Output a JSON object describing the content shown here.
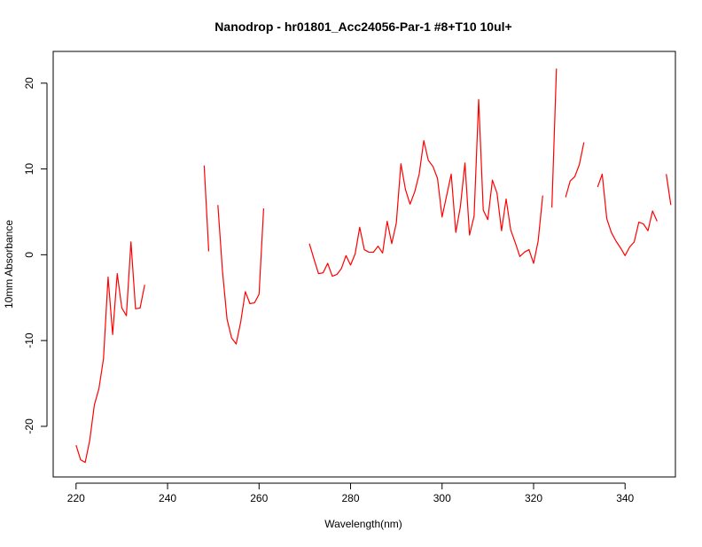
{
  "chart_data": {
    "type": "line",
    "title": "Nanodrop - hr01801_Acc24056-Par-1 #8+T10 10ul+",
    "xlabel": "Wavelength(nm)",
    "ylabel": "10mm Absorbance",
    "xlim": [
      215,
      351
    ],
    "ylim": [
      -25.9,
      23.7
    ],
    "xticks": [
      220,
      240,
      260,
      280,
      300,
      320,
      340
    ],
    "yticks": [
      -20,
      -10,
      0,
      10,
      20
    ],
    "grid": false,
    "legend": "none",
    "line_color": "#ff0000",
    "series": [
      {
        "x": [
          220,
          221,
          222,
          223,
          224,
          225,
          226,
          227,
          228,
          229,
          230,
          231,
          232,
          233,
          234,
          235,
          236,
          237,
          238,
          239,
          240,
          241,
          242,
          243,
          244,
          245,
          246,
          247,
          248,
          249,
          250,
          251,
          252,
          253,
          254,
          255,
          256,
          257,
          258,
          259,
          260,
          261,
          262,
          263,
          264,
          265,
          266,
          267,
          268,
          269,
          270,
          271,
          272,
          273,
          274,
          275,
          276,
          277,
          278,
          279,
          280,
          281,
          282,
          283,
          284,
          285,
          286,
          287,
          288,
          289,
          290,
          291,
          292,
          293,
          294,
          295,
          296,
          297,
          298,
          299,
          300,
          301,
          302,
          303,
          304,
          305,
          306,
          307,
          308,
          309,
          310,
          311,
          312,
          313,
          314,
          315,
          316,
          317,
          318,
          319,
          320,
          321,
          322,
          323,
          324,
          325,
          326,
          327,
          328,
          329,
          330,
          331,
          332,
          333,
          334,
          335,
          336,
          337,
          338,
          339,
          340,
          341,
          342,
          343,
          344,
          345,
          346,
          347,
          348,
          349,
          350
        ],
        "values": [
          -22.2,
          -23.9,
          -24.2,
          -21.6,
          -17.5,
          -15.6,
          -12.1,
          -2.6,
          -9.3,
          -2.2,
          -6.2,
          -7.1,
          1.5,
          -6.3,
          -6.2,
          -3.5,
          null,
          null,
          null,
          null,
          null,
          null,
          null,
          null,
          null,
          null,
          null,
          null,
          10.4,
          0.4,
          null,
          5.8,
          -1.9,
          -7.5,
          -9.7,
          -10.4,
          -7.8,
          -4.3,
          -5.7,
          -5.6,
          -4.6,
          5.4,
          null,
          null,
          null,
          null,
          null,
          null,
          null,
          null,
          null,
          1.3,
          -0.5,
          -2.2,
          -2.1,
          -1.0,
          -2.5,
          -2.3,
          -1.6,
          -0.1,
          -1.2,
          0.1,
          3.2,
          0.6,
          0.3,
          0.3,
          1.0,
          0.2,
          3.9,
          1.3,
          3.7,
          10.6,
          7.6,
          5.9,
          7.3,
          9.4,
          13.3,
          11.0,
          10.3,
          8.9,
          4.4,
          6.9,
          9.4,
          2.6,
          5.6,
          10.7,
          2.3,
          4.5,
          18.1,
          5.2,
          4.1,
          8.7,
          7.2,
          2.8,
          6.5,
          2.9,
          1.4,
          -0.2,
          0.3,
          0.6,
          -1.0,
          1.6,
          6.9,
          null,
          5.5,
          21.7,
          null,
          6.7,
          8.6,
          9.1,
          10.5,
          13.1,
          null,
          null,
          7.9,
          9.4,
          4.2,
          2.6,
          1.6,
          0.8,
          -0.1,
          0.9,
          1.5,
          3.8,
          3.6,
          2.8,
          5.1,
          3.9,
          null,
          9.4,
          5.8
        ]
      }
    ]
  }
}
